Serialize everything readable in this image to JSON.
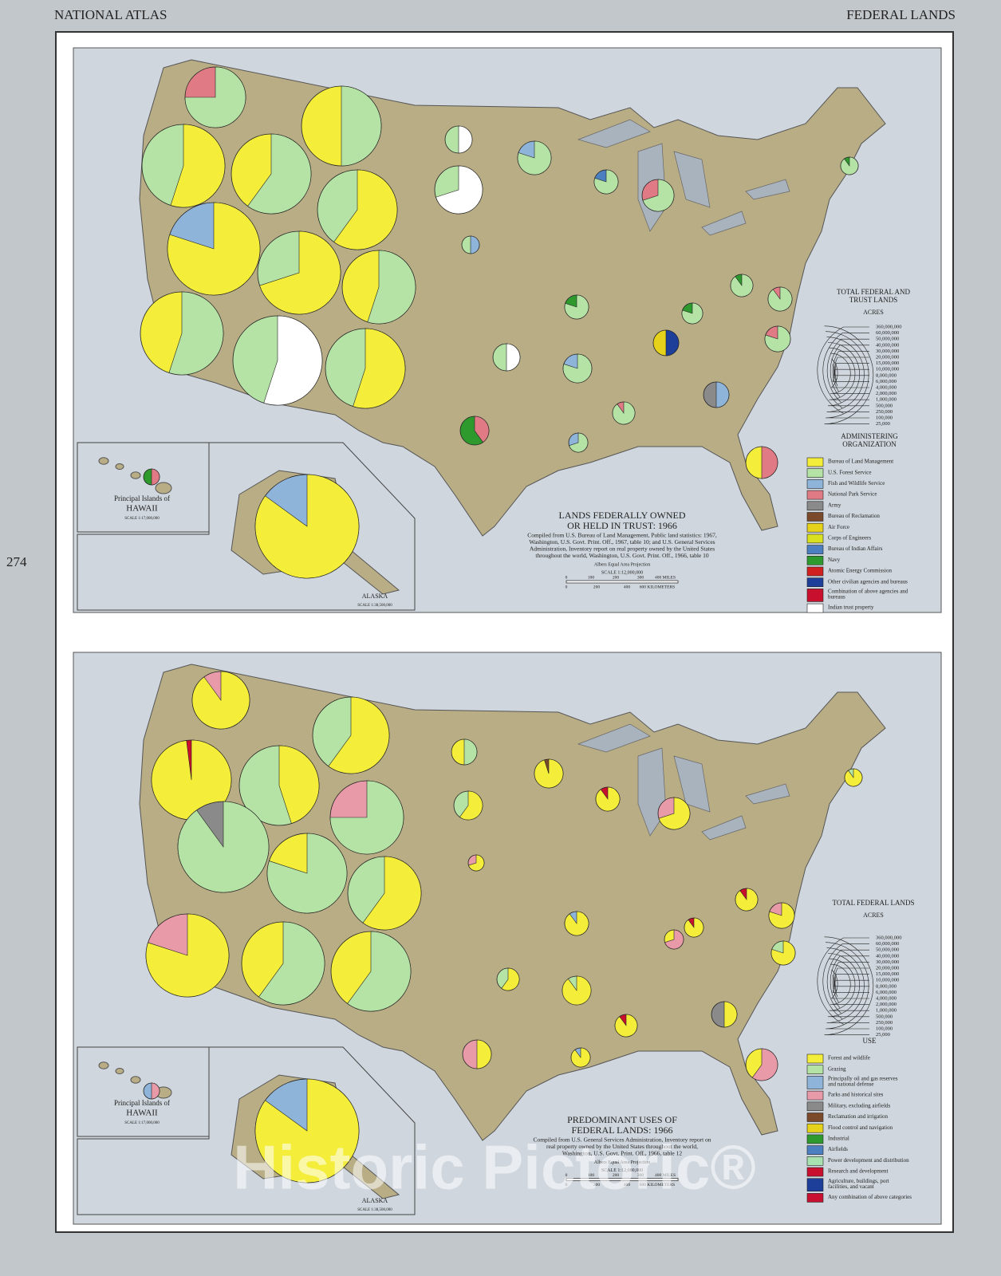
{
  "header": {
    "left": "NATIONAL ATLAS",
    "right": "FEDERAL LANDS",
    "page_number": "274"
  },
  "maps": [
    {
      "title_lines": [
        "LANDS FEDERALLY OWNED",
        "OR HELD IN TRUST: 1966"
      ],
      "source_lines": [
        "Compiled from U.S. Bureau of Land Management, Public land statistics: 1967,",
        "Washington, U.S. Govt. Print. Off., 1967, table 10; and U.S. General Services",
        "Administration, Inventory report on real property owned by the United States",
        "throughout the world, Washington, U.S. Govt. Print. Off., 1966, table 10"
      ],
      "projection": "Albers Equal Area Projection",
      "scale": "SCALE 1:12,000,000",
      "scale_miles": [
        "0",
        "100",
        "200",
        "300",
        "400 MILES"
      ],
      "scale_km": [
        "0",
        "200",
        "400",
        "600 KILOMETERS"
      ],
      "size_legend": {
        "title_lines": [
          "TOTAL FEDERAL AND",
          "TRUST LANDS"
        ],
        "unit": "ACRES",
        "values": [
          "360,000,000",
          "60,000,000",
          "50,000,000",
          "40,000,000",
          "30,000,000",
          "20,000,000",
          "15,000,000",
          "10,000,000",
          "8,000,000",
          "6,000,000",
          "4,000,000",
          "2,000,000",
          "1,000,000",
          "500,000",
          "250,000",
          "100,000",
          "25,000"
        ]
      },
      "legend": {
        "title_lines": [
          "ADMINISTERING",
          "ORGANIZATION"
        ],
        "items": [
          {
            "lines": [
              "Bureau of Land Management"
            ],
            "color": "#f4ee3a"
          },
          {
            "lines": [
              "U.S. Forest Service"
            ],
            "color": "#b5e3a5"
          },
          {
            "lines": [
              "Fish and Wildlife Service"
            ],
            "color": "#8fb4d9"
          },
          {
            "lines": [
              "National Park Service"
            ],
            "color": "#e07a84"
          },
          {
            "lines": [
              "Army"
            ],
            "color": "#8a8a8a"
          },
          {
            "lines": [
              "Bureau of Reclamation"
            ],
            "color": "#7a4a2a"
          },
          {
            "lines": [
              "Air Force"
            ],
            "color": "#e6d21a"
          },
          {
            "lines": [
              "Corps of Engineers"
            ],
            "color": "#d8e020"
          },
          {
            "lines": [
              "Bureau of Indian Affairs"
            ],
            "color": "#4c7fc0"
          },
          {
            "lines": [
              "Navy"
            ],
            "color": "#2e9a2e"
          },
          {
            "lines": [
              "Atomic Energy Commission"
            ],
            "color": "#d02020"
          },
          {
            "lines": [
              "Other civilian agencies and bureaus"
            ],
            "color": "#1d3f9a"
          },
          {
            "lines": [
              "Combination of above agencies and",
              "bureaus"
            ],
            "color": "#c8102e"
          },
          {
            "lines": [
              "Indian trust property"
            ],
            "color": "#ffffff"
          }
        ]
      },
      "hawaii": {
        "lines": [
          "Principal Islands of",
          "HAWAII"
        ],
        "scale": "SCALE 1:17,000,000"
      },
      "alaska": {
        "name": "ALASKA",
        "scale": "SCALE 1:38,500,000"
      }
    },
    {
      "title_lines": [
        "PREDOMINANT USES OF",
        "FEDERAL LANDS: 1966"
      ],
      "source_lines": [
        "Compiled from U.S. General Services Administration, Inventory report on",
        "real property owned by the United States throughout the world,",
        "Washington, U.S. Govt. Print. Off., 1966, table 12"
      ],
      "projection": "Albers Equal Area Projection",
      "scale": "SCALE 1:12,000,000",
      "scale_miles": [
        "0",
        "100",
        "200",
        "300",
        "400 MILES"
      ],
      "scale_km": [
        "0",
        "200",
        "400",
        "600 KILOMETERS"
      ],
      "size_legend": {
        "title_lines": [
          "TOTAL FEDERAL LANDS"
        ],
        "unit": "ACRES",
        "values": [
          "360,000,000",
          "60,000,000",
          "50,000,000",
          "40,000,000",
          "30,000,000",
          "20,000,000",
          "15,000,000",
          "10,000,000",
          "8,000,000",
          "6,000,000",
          "4,000,000",
          "2,000,000",
          "1,000,000",
          "500,000",
          "250,000",
          "100,000",
          "25,000"
        ]
      },
      "legend": {
        "title_lines": [
          "USE"
        ],
        "items": [
          {
            "lines": [
              "Forest and wildlife"
            ],
            "color": "#f4ee3a"
          },
          {
            "lines": [
              "Grazing"
            ],
            "color": "#b5e3a5"
          },
          {
            "lines": [
              "Principally oil and gas reserves",
              "and national defense"
            ],
            "color": "#8fb4d9"
          },
          {
            "lines": [
              "Parks and historical sites"
            ],
            "color": "#e89aa8"
          },
          {
            "lines": [
              "Military, excluding airfields"
            ],
            "color": "#8a8a8a"
          },
          {
            "lines": [
              "Reclamation and irrigation"
            ],
            "color": "#7a4a2a"
          },
          {
            "lines": [
              "Flood control and navigation"
            ],
            "color": "#e6d21a"
          },
          {
            "lines": [
              "Industrial"
            ],
            "color": "#2e9a2e"
          },
          {
            "lines": [
              "Airfields"
            ],
            "color": "#4c7fc0"
          },
          {
            "lines": [
              "Power development and distribution"
            ],
            "color": "#a8e0b0"
          },
          {
            "lines": [
              "Research and development"
            ],
            "color": "#c8102e"
          },
          {
            "lines": [
              "Agriculture, buildings, port",
              "facilities, and vacant"
            ],
            "color": "#1d3f9a"
          },
          {
            "lines": [
              "Any combination of above categories"
            ],
            "color": "#c81030"
          }
        ]
      },
      "hawaii": {
        "lines": [
          "Principal Islands of",
          "HAWAII"
        ],
        "scale": "SCALE 1:17,000,000"
      },
      "alaska": {
        "name": "ALASKA",
        "scale": "SCALE 1:38,500,000"
      }
    }
  ],
  "watermark": "Historic Pictoric®"
}
